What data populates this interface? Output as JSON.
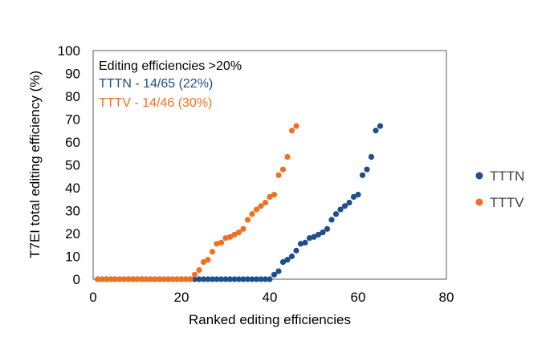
{
  "chart_data": {
    "type": "scatter",
    "xlabel": "Ranked editing efficiencies",
    "ylabel": "T7EI total editing efficiency (%)",
    "xlim": [
      0,
      80
    ],
    "ylim": [
      0,
      100
    ],
    "xticks": [
      0,
      20,
      40,
      60,
      80
    ],
    "yticks": [
      0,
      10,
      20,
      30,
      40,
      50,
      60,
      70,
      80,
      90,
      100
    ],
    "grid": false,
    "legend_position": "right",
    "annotations": [
      {
        "text": "Editing efficiencies >20%",
        "color": "#000000"
      },
      {
        "text": "TTTN - 14/65 (22%)",
        "color": "#1F4E8C"
      },
      {
        "text": "TTTV - 14/46 (30%)",
        "color": "#F07021"
      }
    ],
    "series": [
      {
        "name": "TTTN",
        "color": "#1F4E8C",
        "x": [
          1,
          2,
          3,
          4,
          5,
          6,
          7,
          8,
          9,
          10,
          11,
          12,
          13,
          14,
          15,
          16,
          17,
          18,
          19,
          20,
          21,
          22,
          23,
          24,
          25,
          26,
          27,
          28,
          29,
          30,
          31,
          32,
          33,
          34,
          35,
          36,
          37,
          38,
          39,
          40,
          41,
          42,
          43,
          44,
          45,
          46,
          47,
          48,
          49,
          50,
          51,
          52,
          53,
          54,
          55,
          56,
          57,
          58,
          59,
          60,
          61,
          62,
          63,
          64,
          65
        ],
        "y": [
          0,
          0,
          0,
          0,
          0,
          0,
          0,
          0,
          0,
          0,
          0,
          0,
          0,
          0,
          0,
          0,
          0,
          0,
          0,
          0,
          0,
          0,
          0,
          0,
          0,
          0,
          0,
          0,
          0,
          0,
          0,
          0,
          0,
          0,
          0,
          0,
          0,
          0,
          0,
          0,
          2,
          3.5,
          7.5,
          8.5,
          10,
          12.5,
          15.5,
          16,
          18,
          18.5,
          19.5,
          20.5,
          22,
          26,
          28.5,
          30.5,
          32,
          33.5,
          36,
          37,
          45.5,
          48,
          53.5,
          65,
          67
        ]
      },
      {
        "name": "TTTV",
        "color": "#F07021",
        "x": [
          1,
          2,
          3,
          4,
          5,
          6,
          7,
          8,
          9,
          10,
          11,
          12,
          13,
          14,
          15,
          16,
          17,
          18,
          19,
          20,
          21,
          22,
          23,
          24,
          25,
          26,
          27,
          28,
          29,
          30,
          31,
          32,
          33,
          34,
          35,
          36,
          37,
          38,
          39,
          40,
          41,
          42,
          43,
          44,
          45,
          46
        ],
        "y": [
          0,
          0,
          0,
          0,
          0,
          0,
          0,
          0,
          0,
          0,
          0,
          0,
          0,
          0,
          0,
          0,
          0,
          0,
          0,
          0,
          0,
          0,
          2,
          4,
          7.5,
          8.5,
          12,
          15.5,
          16,
          18,
          18.5,
          19.5,
          20.5,
          22,
          26,
          28.5,
          30.5,
          32,
          33.5,
          36,
          37,
          45.5,
          48,
          53.5,
          65,
          67
        ]
      }
    ]
  }
}
